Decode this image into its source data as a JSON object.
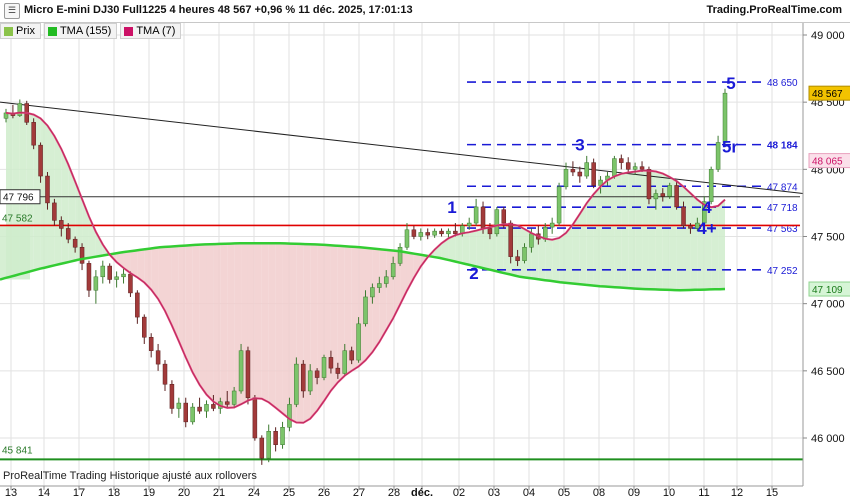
{
  "header": {
    "title": "Micro E-mini DJ30 Full1225 4 heures 48 567 +0,96 % 11 déc. 2025, 17:01:13",
    "brand": "Trading.ProRealTime.com",
    "menu_icon": "menu-icon"
  },
  "legend": [
    {
      "label": "Prix",
      "color": "#8bc34a"
    },
    {
      "label": "TMA (155)",
      "color": "#22bb22"
    },
    {
      "label": "TMA (7)",
      "color": "#cc1166"
    }
  ],
  "footnote": "ProRealTime Trading  Historique ajusté aux rollovers",
  "colors": {
    "up": "#7cc46a",
    "down": "#a23a3a",
    "tma155": "#33cc33",
    "tma7": "#e0407a",
    "red_line": "#e00000",
    "level_line": "#1a1ad6",
    "green_line": "#1f8f1f"
  },
  "chart_data": {
    "type": "candlestick",
    "ylim": [
      45780,
      49050
    ],
    "x_ticks": [
      "13",
      "14",
      "17",
      "18",
      "19",
      "20",
      "21",
      "24",
      "25",
      "26",
      "27",
      "28",
      "déc.",
      "02",
      "03",
      "04",
      "05",
      "08",
      "09",
      "10",
      "11",
      "12",
      "15"
    ],
    "y_ticks": [
      "49 000",
      "48 500",
      "48 000",
      "47 500",
      "47 000",
      "46 500",
      "46 000"
    ],
    "y_tick_values": [
      49000,
      48500,
      48000,
      47500,
      47000,
      46500,
      46000
    ],
    "price_labels": [
      {
        "text": "48 567",
        "value": 48567,
        "style": "current"
      },
      {
        "text": "48 065",
        "value": 48065,
        "style": "tma7"
      },
      {
        "text": "47 109",
        "value": 47109,
        "style": "tma155"
      }
    ],
    "horizontal_lines": [
      {
        "label": "48 650",
        "value": 48650,
        "kind": "dashed-level"
      },
      {
        "label": "48 184",
        "value": 48184,
        "kind": "dashed-level"
      },
      {
        "label": "47 874",
        "value": 47874,
        "kind": "dashed-level"
      },
      {
        "label": "47 718",
        "value": 47718,
        "kind": "dashed-level"
      },
      {
        "label": "47 563",
        "value": 47563,
        "kind": "dashed-level"
      },
      {
        "label": "47 252",
        "value": 47252,
        "kind": "dashed-level"
      },
      {
        "label": "47 582",
        "value": 47582,
        "kind": "red-solid"
      },
      {
        "label": "47 796",
        "value": 47796,
        "kind": "black-solid"
      },
      {
        "label": "45 841",
        "value": 45841,
        "kind": "green-solid"
      }
    ],
    "wave_labels": [
      "1",
      "2",
      "3",
      "4",
      "4+",
      "5",
      "5r"
    ],
    "candles": [
      [
        48380,
        48450,
        48350,
        48420
      ],
      [
        48420,
        48480,
        48380,
        48400
      ],
      [
        48400,
        48520,
        48390,
        48490
      ],
      [
        48490,
        48510,
        48330,
        48350
      ],
      [
        48350,
        48380,
        48150,
        48180
      ],
      [
        48180,
        48200,
        47900,
        47950
      ],
      [
        47950,
        47980,
        47700,
        47750
      ],
      [
        47750,
        47780,
        47580,
        47620
      ],
      [
        47620,
        47650,
        47500,
        47560
      ],
      [
        47560,
        47600,
        47450,
        47480
      ],
      [
        47480,
        47500,
        47380,
        47420
      ],
      [
        47420,
        47450,
        47250,
        47300
      ],
      [
        47300,
        47320,
        47050,
        47100
      ],
      [
        47100,
        47250,
        47000,
        47200
      ],
      [
        47200,
        47320,
        47150,
        47280
      ],
      [
        47280,
        47300,
        47150,
        47180
      ],
      [
        47180,
        47240,
        47120,
        47200
      ],
      [
        47200,
        47260,
        47150,
        47220
      ],
      [
        47220,
        47240,
        47050,
        47080
      ],
      [
        47080,
        47100,
        46850,
        46900
      ],
      [
        46900,
        46920,
        46700,
        46750
      ],
      [
        46750,
        46780,
        46600,
        46650
      ],
      [
        46650,
        46700,
        46500,
        46550
      ],
      [
        46550,
        46580,
        46350,
        46400
      ],
      [
        46400,
        46430,
        46180,
        46220
      ],
      [
        46220,
        46300,
        46150,
        46260
      ],
      [
        46260,
        46300,
        46080,
        46120
      ],
      [
        46120,
        46260,
        46100,
        46230
      ],
      [
        46230,
        46300,
        46180,
        46200
      ],
      [
        46200,
        46280,
        46150,
        46250
      ],
      [
        46250,
        46320,
        46200,
        46220
      ],
      [
        46220,
        46300,
        46180,
        46270
      ],
      [
        46270,
        46350,
        46230,
        46250
      ],
      [
        46250,
        46380,
        46220,
        46350
      ],
      [
        46350,
        46700,
        46330,
        46650
      ],
      [
        46650,
        46680,
        46250,
        46300
      ],
      [
        46300,
        46320,
        45980,
        46000
      ],
      [
        46000,
        46020,
        45800,
        45850
      ],
      [
        45850,
        46100,
        45820,
        46050
      ],
      [
        46050,
        46080,
        45900,
        45950
      ],
      [
        45950,
        46120,
        45920,
        46080
      ],
      [
        46080,
        46300,
        46050,
        46250
      ],
      [
        46250,
        46600,
        46230,
        46550
      ],
      [
        46550,
        46580,
        46300,
        46350
      ],
      [
        46350,
        46550,
        46320,
        46500
      ],
      [
        46500,
        46520,
        46400,
        46450
      ],
      [
        46450,
        46620,
        46430,
        46600
      ],
      [
        46600,
        46650,
        46480,
        46520
      ],
      [
        46520,
        46560,
        46440,
        46480
      ],
      [
        46480,
        46700,
        46460,
        46650
      ],
      [
        46650,
        46680,
        46550,
        46580
      ],
      [
        46580,
        46900,
        46560,
        46850
      ],
      [
        46850,
        47100,
        46830,
        47050
      ],
      [
        47050,
        47150,
        47000,
        47120
      ],
      [
        47120,
        47200,
        47080,
        47150
      ],
      [
        47150,
        47250,
        47120,
        47200
      ],
      [
        47200,
        47350,
        47180,
        47300
      ],
      [
        47300,
        47450,
        47280,
        47420
      ],
      [
        47420,
        47600,
        47400,
        47550
      ],
      [
        47550,
        47580,
        47480,
        47500
      ],
      [
        47500,
        47560,
        47470,
        47530
      ],
      [
        47530,
        47560,
        47480,
        47510
      ],
      [
        47510,
        47560,
        47490,
        47540
      ],
      [
        47540,
        47560,
        47500,
        47520
      ],
      [
        47520,
        47560,
        47490,
        47540
      ],
      [
        47540,
        47600,
        47500,
        47520
      ],
      [
        47520,
        47600,
        47500,
        47580
      ],
      [
        47580,
        47640,
        47550,
        47600
      ],
      [
        47600,
        47780,
        47580,
        47720
      ],
      [
        47720,
        47760,
        47520,
        47560
      ],
      [
        47560,
        47600,
        47480,
        47520
      ],
      [
        47520,
        47720,
        47500,
        47700
      ],
      [
        47700,
        47720,
        47560,
        47600
      ],
      [
        47600,
        47620,
        47300,
        47350
      ],
      [
        47350,
        47400,
        47280,
        47320
      ],
      [
        47320,
        47450,
        47300,
        47420
      ],
      [
        47420,
        47560,
        47380,
        47520
      ],
      [
        47520,
        47580,
        47440,
        47480
      ],
      [
        47480,
        47600,
        47460,
        47570
      ],
      [
        47570,
        47640,
        47520,
        47600
      ],
      [
        47600,
        47900,
        47580,
        47870
      ],
      [
        47870,
        48050,
        47850,
        48000
      ],
      [
        48000,
        48060,
        47950,
        47980
      ],
      [
        47980,
        48020,
        47900,
        47950
      ],
      [
        47950,
        48100,
        47930,
        48050
      ],
      [
        48050,
        48080,
        47860,
        47880
      ],
      [
        47880,
        47950,
        47820,
        47920
      ],
      [
        47920,
        47980,
        47880,
        47950
      ],
      [
        47950,
        48100,
        47930,
        48080
      ],
      [
        48080,
        48110,
        48000,
        48050
      ],
      [
        48050,
        48090,
        47980,
        48000
      ],
      [
        48000,
        48050,
        47960,
        48020
      ],
      [
        48020,
        48060,
        47980,
        48000
      ],
      [
        48000,
        48020,
        47740,
        47780
      ],
      [
        47780,
        47850,
        47700,
        47820
      ],
      [
        47820,
        47860,
        47760,
        47800
      ],
      [
        47800,
        47900,
        47780,
        47880
      ],
      [
        47880,
        47920,
        47700,
        47720
      ],
      [
        47720,
        47760,
        47560,
        47580
      ],
      [
        47580,
        47600,
        47520,
        47560
      ],
      [
        47560,
        47640,
        47540,
        47600
      ],
      [
        47600,
        47800,
        47580,
        47760
      ],
      [
        47760,
        48020,
        47740,
        48000
      ],
      [
        48000,
        48250,
        47980,
        48200
      ],
      [
        48200,
        48600,
        48180,
        48567
      ]
    ]
  }
}
